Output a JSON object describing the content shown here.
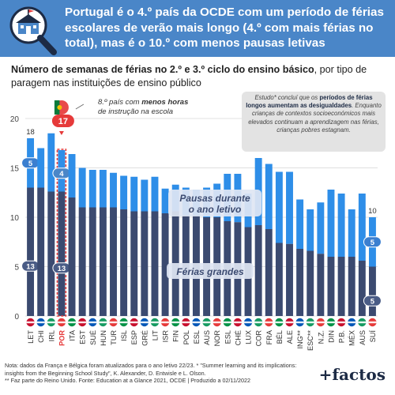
{
  "header": {
    "title": "Portugal é o 4.º país da OCDE com um período de férias escolares de verão mais longo (4.º com mais férias no total), mas é o 10.º com menos pausas letivas",
    "brand": "+factos"
  },
  "subtitle": {
    "bold": "Número de semanas de férias no 2.º e 3.º ciclo do ensino básico",
    "rest": ", por tipo de paragem nas instituições de ensino público"
  },
  "annotations": {
    "pt_hours_rank": "17",
    "pt_hours_text_a": "8.º país com ",
    "pt_hours_text_b": "menos horas",
    "pt_hours_text_c": "de instrução na escola",
    "study_a": "Estudo* concluí que os ",
    "study_b": "períodos de férias longos aumentam as desigualdades",
    "study_c": ". Enquanto crianças de contextos socioeconómicos mais elevados continuam a aprendizagem nas férias, crianças pobres estagnam."
  },
  "footer": {
    "line1": "Nota: dados da França e Bélgica foram atualizados para o ano letivo 22/23. * \"Summer learning and its implications: insights from the Beginning School Study\", K. Alexander, D. Entwisle e L. Olson.",
    "line2": "** Faz parte do Reino Unido. Fonte: Education at a Glance 2021, OCDE | Produzido a 02/11/2022"
  },
  "colors": {
    "header_bg": "#4a86c8",
    "summer_bar": "#3b4a70",
    "breaks_bar": "#2e8ee8",
    "portugal_highlight": "#e63a3a",
    "label_badge": "#3b7fd0"
  },
  "chart_data": {
    "type": "bar",
    "stacked": true,
    "categories": [
      "LET",
      "CHI",
      "IRL",
      "POR",
      "ITA",
      "EST",
      "SUÉ",
      "HUN",
      "TUR",
      "ISL",
      "ESP",
      "GRÉ",
      "LIT",
      "ISR",
      "FIN",
      "POL",
      "ESL",
      "AUS",
      "NOR",
      "ESL",
      "CHÉ",
      "LUX",
      "COR",
      "FRA",
      "BÉL",
      "ALE",
      "ING**",
      "ESC**",
      "N.Z.",
      "DIN",
      "P.B.",
      "MÉX",
      "AUS",
      "SUÍ"
    ],
    "series": [
      {
        "name": "Férias grandes",
        "values": [
          13,
          13,
          12.6,
          12.6,
          12,
          11,
          11,
          11,
          11,
          10.8,
          10.6,
          10.6,
          10.6,
          10.4,
          10.6,
          10.2,
          10.2,
          10,
          10,
          9.6,
          9.5,
          9,
          9.2,
          8.8,
          7.4,
          7.3,
          6.8,
          6.6,
          6.3,
          6,
          6,
          6,
          5.6,
          5
        ]
      },
      {
        "name": "Pausas durante o ano letivo",
        "values": [
          5,
          4,
          5.9,
          4.2,
          4.4,
          4,
          3.8,
          3.8,
          3.5,
          3.4,
          3.5,
          3.2,
          3.5,
          2.5,
          2.7,
          2.8,
          2.6,
          3,
          3.4,
          4.8,
          4.9,
          3.4,
          6.8,
          6.6,
          7.2,
          7.3,
          5,
          4.2,
          5.2,
          6.8,
          6.4,
          4.8,
          6.8,
          5
        ]
      }
    ],
    "totals_labeled": {
      "LET": 18,
      "SUÍ": 10
    },
    "segment_labels": {
      "LET": {
        "summer": 13,
        "breaks": 5
      },
      "POR": {
        "summer": 13,
        "breaks": 4
      },
      "SUÍ": {
        "summer": 5,
        "breaks": 5
      }
    },
    "series_labels": [
      "Pausas durante o ano letivo",
      "Férias grandes"
    ],
    "ylim": [
      0,
      20
    ],
    "yticks": [
      0,
      5,
      10,
      15,
      20
    ],
    "highlight": "POR",
    "grid": true
  }
}
